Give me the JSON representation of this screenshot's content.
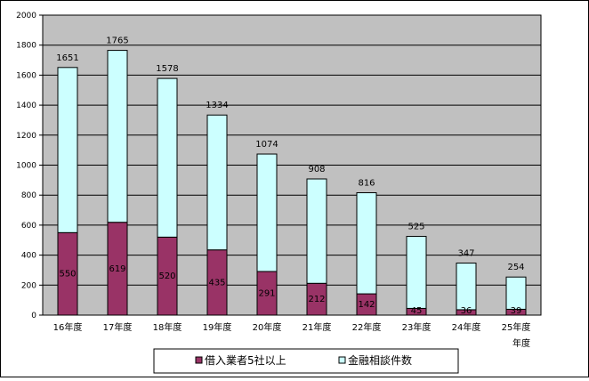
{
  "chart_data": {
    "type": "bar",
    "stacked": true,
    "categories": [
      "16年度",
      "17年度",
      "18年度",
      "19年度",
      "20年度",
      "21年度",
      "22年度",
      "23年度",
      "24年度",
      "25年度"
    ],
    "series": [
      {
        "name": "借入業者5社以上",
        "values": [
          550,
          619,
          520,
          435,
          291,
          212,
          142,
          45,
          36,
          39
        ],
        "color": "#993366"
      },
      {
        "name": "金融相談件数",
        "values": [
          1101,
          1146,
          1058,
          899,
          783,
          696,
          674,
          480,
          311,
          215
        ],
        "color": "#ccffff"
      }
    ],
    "totals": [
      1651,
      1765,
      1578,
      1334,
      1074,
      908,
      816,
      525,
      347,
      254
    ],
    "inner_labels": [
      "550",
      "619",
      "520",
      "435",
      "291",
      "212",
      "142",
      "45",
      "36",
      "39"
    ],
    "total_labels": [
      "1651",
      "1765",
      "1578",
      "1334",
      "1074",
      "908",
      "816",
      "525",
      "347",
      "254"
    ],
    "yticks": [
      "0",
      "200",
      "400",
      "600",
      "800",
      "1000",
      "1200",
      "1400",
      "1600",
      "1800",
      "2000"
    ],
    "ylim": [
      0,
      2000
    ],
    "xlabel": "年度",
    "ylabel": "",
    "title": "",
    "grid": true,
    "plot_background": "#c0c0c0",
    "legend_position": "bottom"
  }
}
